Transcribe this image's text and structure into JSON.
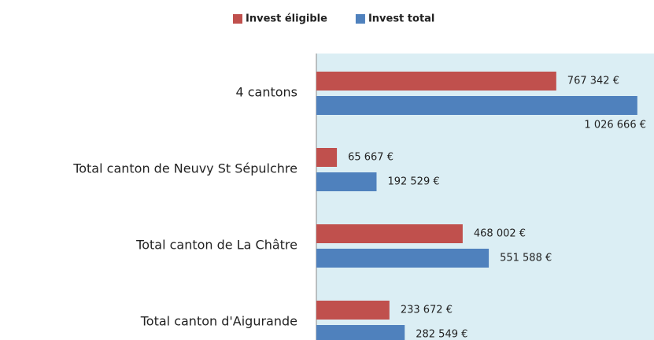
{
  "chart_data": {
    "type": "hbar",
    "categories": [
      "4 cantons",
      "Total canton de Neuvy St Sépulchre",
      "Total canton de La Châtre",
      "Total canton d'Aigurande"
    ],
    "series": [
      {
        "name": "Invest éligible",
        "color": "#c0504d",
        "values": [
          767342,
          65667,
          468002,
          233672
        ],
        "value_labels": [
          "767 342 €",
          "65 667 €",
          "468 002 €",
          "233 672 €"
        ]
      },
      {
        "name": "Invest total",
        "color": "#4f81bd",
        "values": [
          1026666,
          192529,
          551588,
          282549
        ],
        "value_labels": [
          "1 026 666 €",
          "192 529 €",
          "551 588 €",
          "282 549 €"
        ]
      }
    ],
    "xlim": [
      0,
      1080000
    ],
    "legend": "top"
  }
}
